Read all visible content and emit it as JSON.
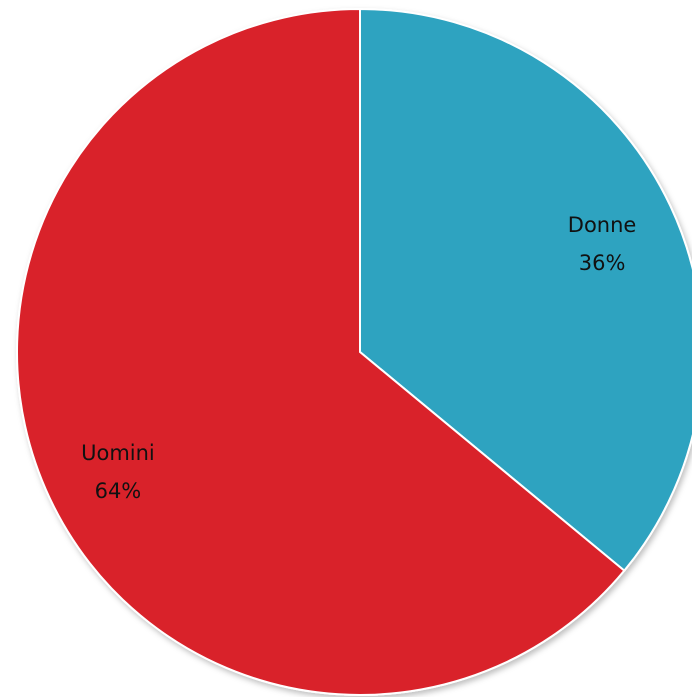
{
  "chart_data": {
    "type": "pie",
    "title": "",
    "legend": "none",
    "slices": [
      {
        "label": "Donne",
        "value": 36,
        "display": "36%",
        "color": "#2fa3c0"
      },
      {
        "label": "Uomini",
        "value": 64,
        "display": "64%",
        "color": "#d9222c"
      }
    ]
  }
}
